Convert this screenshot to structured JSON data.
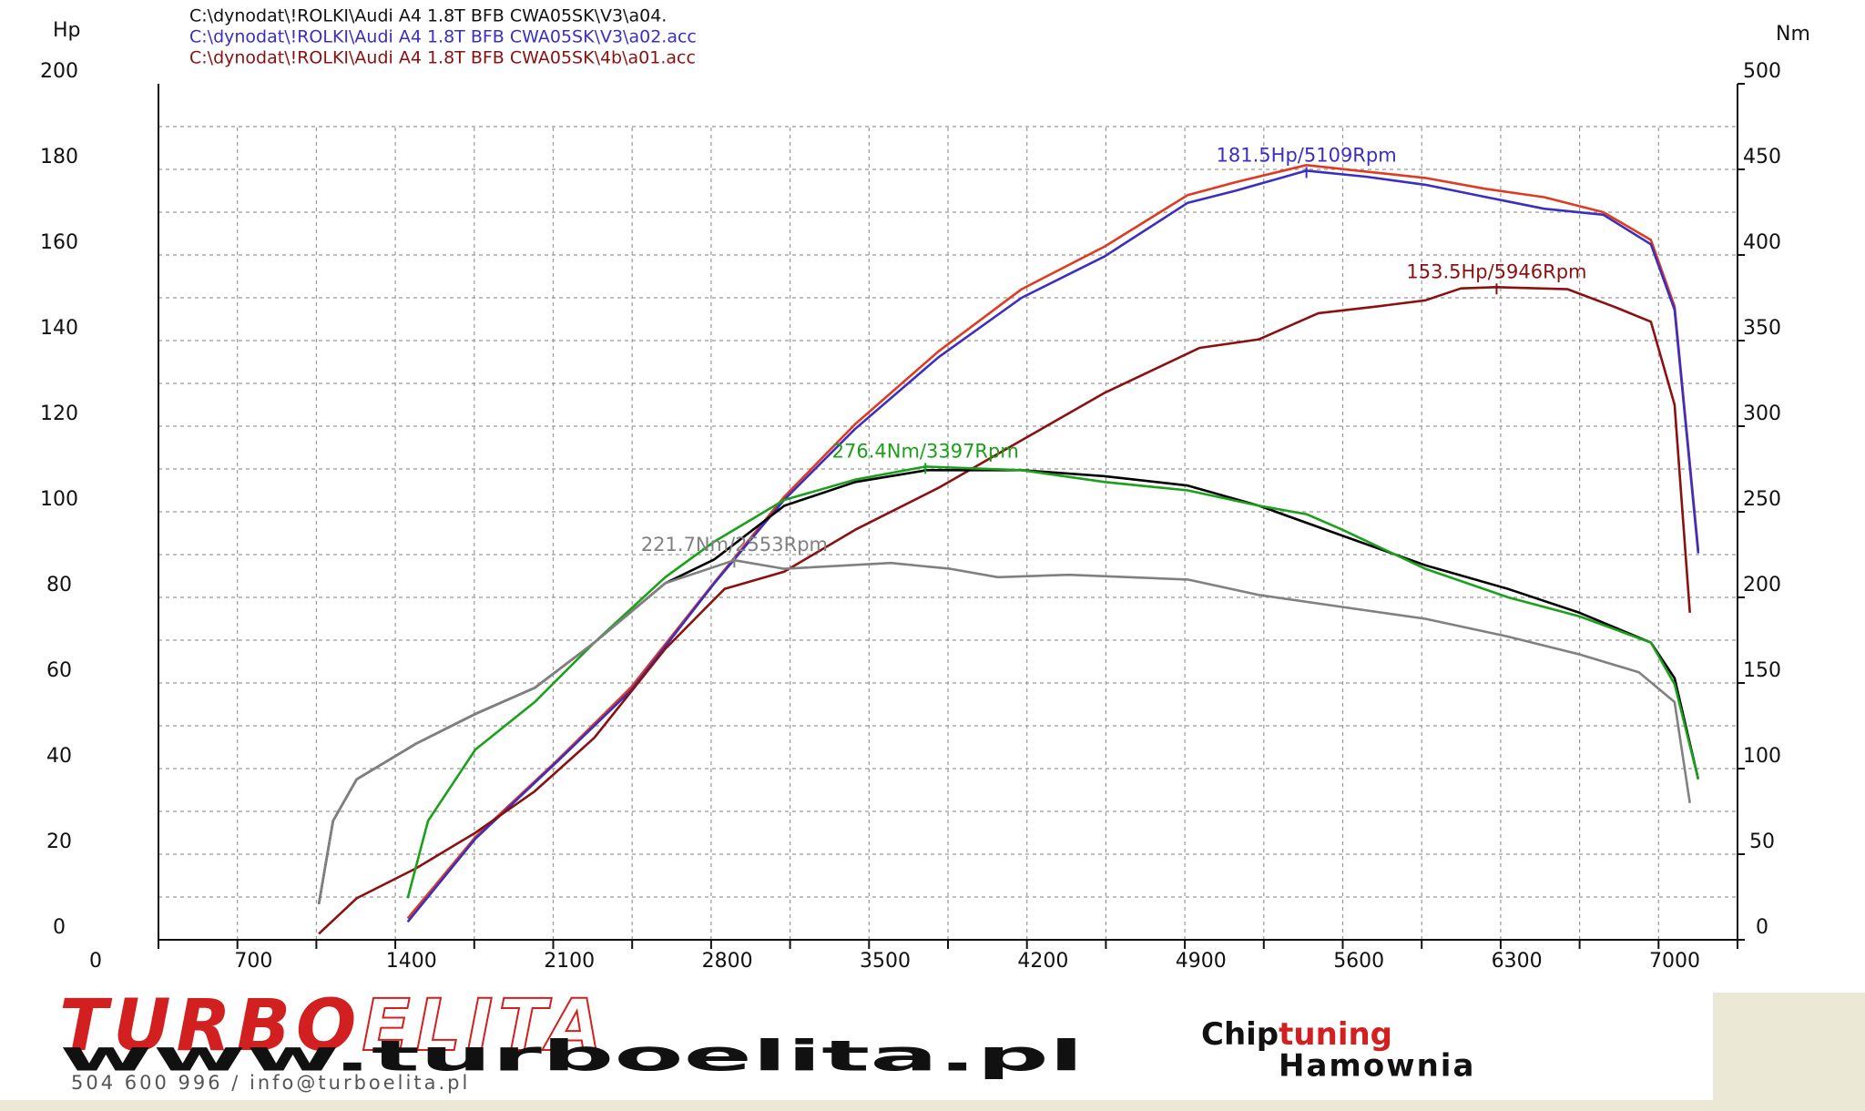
{
  "chart_data": {
    "type": "line",
    "files": [
      {
        "name": "C:\\dynodat\\!ROLKI\\Audi A4 1.8T BFB CWA05SK\\V3\\a04.",
        "color": "#111111"
      },
      {
        "name": "C:\\dynodat\\!ROLKI\\Audi A4 1.8T BFB CWA05SK\\V3\\a02.acc",
        "color": "#3a2fc0"
      },
      {
        "name": "C:\\dynodat\\!ROLKI\\Audi A4 1.8T BFB CWA05SK\\4b\\a01.acc",
        "color": "#8b1010"
      }
    ],
    "y_label": "Hp",
    "y2_label": "Nm",
    "xlim": [
      0,
      7000
    ],
    "xticks": [
      0,
      700,
      1400,
      2100,
      2800,
      3500,
      4200,
      4900,
      5600,
      6300,
      7000
    ],
    "ylim": [
      0,
      200
    ],
    "yticks": [
      0,
      20,
      40,
      60,
      80,
      100,
      120,
      140,
      160,
      180,
      200
    ],
    "y2lim": [
      0,
      500
    ],
    "y2ticks": [
      0,
      50,
      100,
      150,
      200,
      250,
      300,
      350,
      400,
      450,
      500
    ],
    "grid": true,
    "series": [
      {
        "color": "#e03a20",
        "x": [
          1105,
          1405,
          1769,
          2095,
          2464,
          2774,
          3089,
          3458,
          3826,
          4195,
          4563,
          4774,
          5089,
          5352,
          5616,
          5879,
          6142,
          6405,
          6616,
          6721,
          6826
        ],
        "values": [
          5,
          24,
          42,
          59,
          83.5,
          103.5,
          120.5,
          137.5,
          152,
          162,
          174,
          177,
          181,
          179.5,
          178,
          175.5,
          173.5,
          170,
          163.5,
          148,
          91
        ]
      },
      {
        "color": "#3a2fc0",
        "peak_label": "181.5Hp/5109Rpm",
        "x": [
          1105,
          1405,
          1769,
          2095,
          2464,
          2774,
          3089,
          3458,
          3826,
          4195,
          4563,
          4774,
          5089,
          5352,
          5616,
          5879,
          6142,
          6405,
          6616,
          6721,
          6826
        ],
        "values": [
          4.2,
          23.6,
          41.7,
          58.3,
          83.3,
          102.8,
          119.4,
          136.1,
          150,
          159.7,
          172.2,
          175,
          179.7,
          178.3,
          176.4,
          173.6,
          170.8,
          169.4,
          162.5,
          147.2,
          90.3
        ]
      },
      {
        "color": "#8b1010",
        "peak_label": "153.5Hp/5946Rpm",
        "x": [
          711,
          879,
          1142,
          1405,
          1668,
          1932,
          2247,
          2510,
          2774,
          3089,
          3458,
          3826,
          4195,
          4616,
          4879,
          5142,
          5405,
          5616,
          5774,
          5932,
          6247,
          6458,
          6616,
          6721,
          6789
        ],
        "values": [
          1.4,
          9.7,
          16.7,
          25,
          34.7,
          47.2,
          68,
          82,
          86,
          95.8,
          105.6,
          116.7,
          127.8,
          138.3,
          140.3,
          146.4,
          148,
          149.4,
          152.2,
          152.5,
          152,
          147.8,
          144.4,
          125,
          76.4
        ]
      },
      {
        "color": "#000000",
        "axis": "y2",
        "x": [
          711,
          774,
          879,
          1142,
          1405,
          1668,
          1932,
          2247,
          2464,
          2774,
          3089,
          3405,
          3826,
          4195,
          4563,
          4879,
          5247,
          5616,
          5984,
          6300,
          6616,
          6721,
          6826
        ],
        "values": [
          20.8,
          69.4,
          93.8,
          114.6,
          131.9,
          147.2,
          173.6,
          208.3,
          222.2,
          253.5,
          267.4,
          274.3,
          274.3,
          270.8,
          265.3,
          253.5,
          236.1,
          218.8,
          204.9,
          191,
          173.6,
          152.8,
          93.8
        ]
      },
      {
        "color": "#1aa01a",
        "axis": "y2",
        "peak_label": "276.4Nm/3397Rpm",
        "x": [
          1105,
          1195,
          1405,
          1668,
          1932,
          2247,
          2464,
          2774,
          3089,
          3400,
          3826,
          4195,
          4563,
          4879,
          5089,
          5247,
          5616,
          5984,
          6300,
          6616,
          6721,
          6826
        ],
        "values": [
          24.3,
          69.4,
          111.1,
          138.9,
          173.6,
          211.8,
          232.6,
          256.9,
          268.8,
          276.4,
          274.3,
          267.4,
          262.5,
          253.5,
          248.6,
          239.6,
          216.7,
          200,
          188.9,
          173.6,
          149.3,
          93.8
        ]
      },
      {
        "color": "#808080",
        "axis": "y2",
        "peak_label": "221.7Nm/2553Rpm",
        "x": [
          711,
          774,
          879,
          1142,
          1405,
          1668,
          1932,
          2247,
          2553,
          2774,
          3247,
          3510,
          3721,
          4037,
          4563,
          4879,
          5247,
          5616,
          5984,
          6300,
          6563,
          6721,
          6789
        ],
        "values": [
          20.8,
          69.4,
          93.8,
          114.6,
          131.9,
          147.2,
          173.6,
          208.3,
          221.7,
          216.7,
          220.1,
          216.7,
          211.8,
          213.2,
          210.4,
          201.4,
          194.4,
          187.5,
          177.1,
          166.7,
          156.3,
          138.9,
          79.9
        ]
      }
    ]
  },
  "footer": {
    "brand_bold": "TURBO",
    "brand_outline": "ELITA",
    "url": "www.turboelita.pl",
    "contact": "504 600 996 / info@turboelita.pl",
    "chip": "Chip",
    "tuning": "tuning",
    "hamownia": "Hamownia"
  }
}
